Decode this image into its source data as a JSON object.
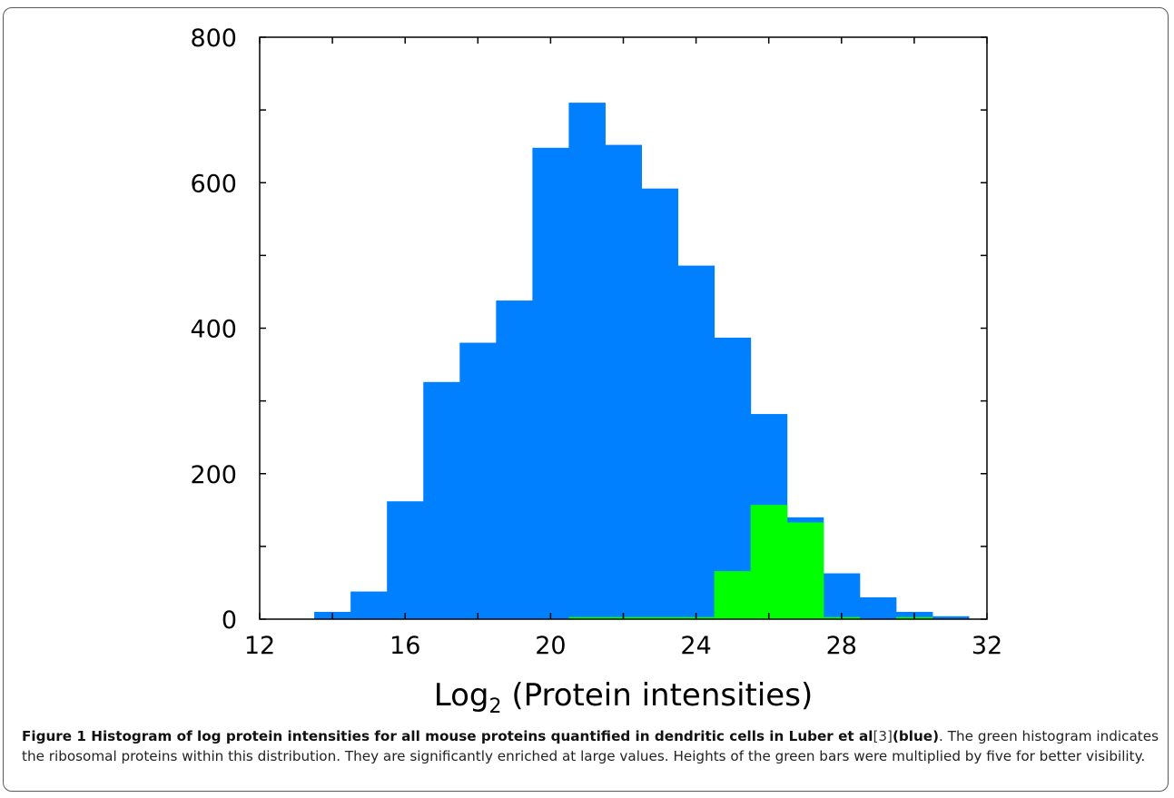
{
  "chart_data": {
    "type": "bar",
    "xlabel_main": "Log",
    "xlabel_sub": "2",
    "xlabel_rest": " (Protein intensities)",
    "xlim": [
      12,
      32
    ],
    "ylim": [
      0,
      800
    ],
    "xticks": [
      12,
      16,
      20,
      24,
      28,
      32
    ],
    "yticks": [
      0,
      200,
      400,
      600,
      800
    ],
    "bin_width": 1,
    "series": [
      {
        "color": "#0080ff",
        "bins": [
          {
            "x0": 13.5,
            "value": 10
          },
          {
            "x0": 14.5,
            "value": 38
          },
          {
            "x0": 15.5,
            "value": 162
          },
          {
            "x0": 16.5,
            "value": 326
          },
          {
            "x0": 17.5,
            "value": 380
          },
          {
            "x0": 18.5,
            "value": 438
          },
          {
            "x0": 19.5,
            "value": 648
          },
          {
            "x0": 20.5,
            "value": 710
          },
          {
            "x0": 21.5,
            "value": 652
          },
          {
            "x0": 22.5,
            "value": 592
          },
          {
            "x0": 23.5,
            "value": 486
          },
          {
            "x0": 24.5,
            "value": 387
          },
          {
            "x0": 25.5,
            "value": 282
          },
          {
            "x0": 26.5,
            "value": 140
          },
          {
            "x0": 27.5,
            "value": 63
          },
          {
            "x0": 28.5,
            "value": 30
          },
          {
            "x0": 29.5,
            "value": 10
          },
          {
            "x0": 30.5,
            "value": 4
          }
        ]
      },
      {
        "color": "#00ff00",
        "bins": [
          {
            "x0": 20.5,
            "value": 3
          },
          {
            "x0": 21.5,
            "value": 3
          },
          {
            "x0": 22.5,
            "value": 3
          },
          {
            "x0": 23.5,
            "value": 3
          },
          {
            "x0": 24.5,
            "value": 66
          },
          {
            "x0": 25.5,
            "value": 157
          },
          {
            "x0": 26.5,
            "value": 133
          },
          {
            "x0": 27.5,
            "value": 3
          },
          {
            "x0": 29.5,
            "value": 3
          }
        ]
      }
    ]
  },
  "caption": {
    "bold": "Figure 1 Histogram of log protein intensities for all mouse proteins quantified in dendritic cells in Luber et al",
    "ref": "[3]",
    "bold2": "(blue)",
    "text": ". The green histogram indicates the ribosomal proteins within this distribution. They are significantly enriched at large values. Heights of the green bars were multiplied by five for better visibility."
  }
}
